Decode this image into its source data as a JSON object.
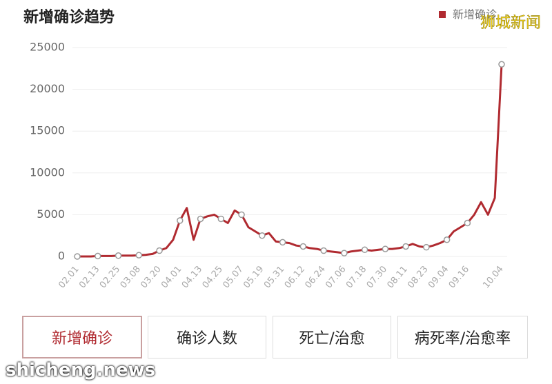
{
  "chart_data": {
    "type": "line",
    "title": "新增确诊趋势",
    "categories": [
      "02.01",
      null,
      null,
      "02.13",
      null,
      null,
      "02.25",
      null,
      null,
      "03.08",
      null,
      null,
      "03.20",
      null,
      null,
      "04.01",
      null,
      null,
      "04.13",
      null,
      null,
      "04.25",
      null,
      null,
      "05.07",
      null,
      null,
      "05.19",
      null,
      null,
      "05.31",
      null,
      null,
      "06.12",
      null,
      null,
      "06.24",
      null,
      null,
      "07.06",
      null,
      null,
      "07.18",
      null,
      null,
      "07.30",
      null,
      null,
      "08.11",
      null,
      null,
      "08.23",
      null,
      null,
      "09.04",
      null,
      null,
      "09.16",
      null,
      null,
      null,
      null,
      "10.04"
    ],
    "series": [
      {
        "name": "新增确诊",
        "color": "#b02a30",
        "values": [
          0,
          0,
          0,
          50,
          50,
          50,
          100,
          100,
          100,
          150,
          200,
          300,
          700,
          1000,
          2000,
          4300,
          5800,
          2000,
          4500,
          4800,
          5000,
          4500,
          4000,
          5500,
          5000,
          3500,
          3000,
          2500,
          2800,
          1800,
          1700,
          1600,
          1300,
          1200,
          1000,
          900,
          700,
          600,
          500,
          400,
          600,
          700,
          800,
          700,
          800,
          900,
          900,
          1000,
          1200,
          1500,
          1200,
          1100,
          1300,
          1600,
          2000,
          3000,
          3500,
          4000,
          5000,
          6500,
          5000,
          7000,
          23000
        ]
      }
    ],
    "ylim": [
      0,
      25000
    ],
    "yticks": [
      0,
      5000,
      10000,
      15000,
      20000,
      25000
    ],
    "grid": true,
    "legend": "top-right"
  },
  "tabs": [
    "新增确诊",
    "确诊人数",
    "死亡/治愈",
    "病死率/治愈率"
  ],
  "watermark_top": "狮城新闻",
  "watermark_bottom": "shicheng.news"
}
